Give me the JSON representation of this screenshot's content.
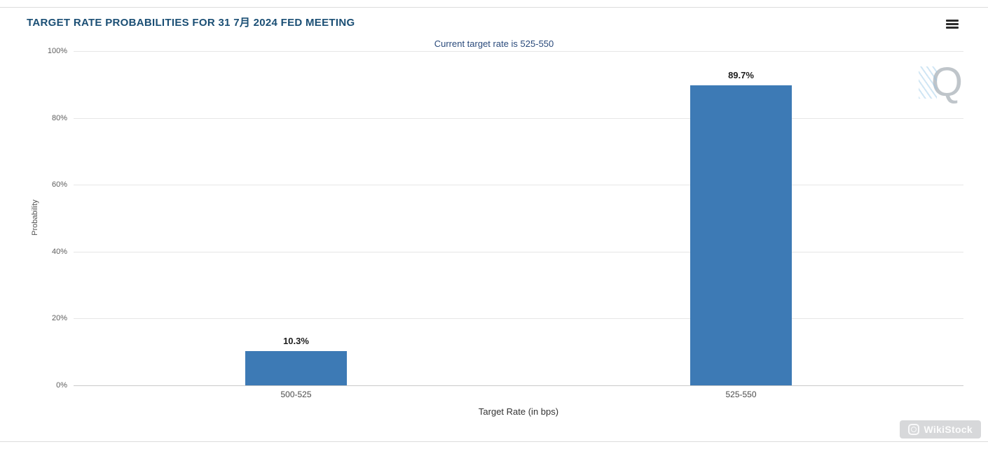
{
  "header": {
    "title": "TARGET RATE PROBABILITIES FOR 31 7月 2024 FED MEETING",
    "menu_icon": "hamburger-menu-icon"
  },
  "chart_data": {
    "type": "bar",
    "title": "TARGET RATE PROBABILITIES FOR 31 7月 2024 FED MEETING",
    "subtitle": "Current target rate is 525-550",
    "categories": [
      "500-525",
      "525-550"
    ],
    "values": [
      10.3,
      89.7
    ],
    "value_labels": [
      "10.3%",
      "89.7%"
    ],
    "xlabel": "Target Rate (in bps)",
    "ylabel": "Probability",
    "ylim": [
      0,
      100
    ],
    "ytick_step": 20,
    "ytick_labels": [
      "0%",
      "20%",
      "40%",
      "60%",
      "80%",
      "100%"
    ],
    "grid": true,
    "legend": "none",
    "bar_color": "#3d7ab5"
  },
  "colors": {
    "title": "#1a4e74",
    "subtitle": "#2a4a7b",
    "bar": "#3d7ab5",
    "gridline": "#e6e6e6",
    "axis_line": "#c9c9c9"
  },
  "watermarks": {
    "logo_letter": "Q",
    "brand": "WikiStock"
  }
}
